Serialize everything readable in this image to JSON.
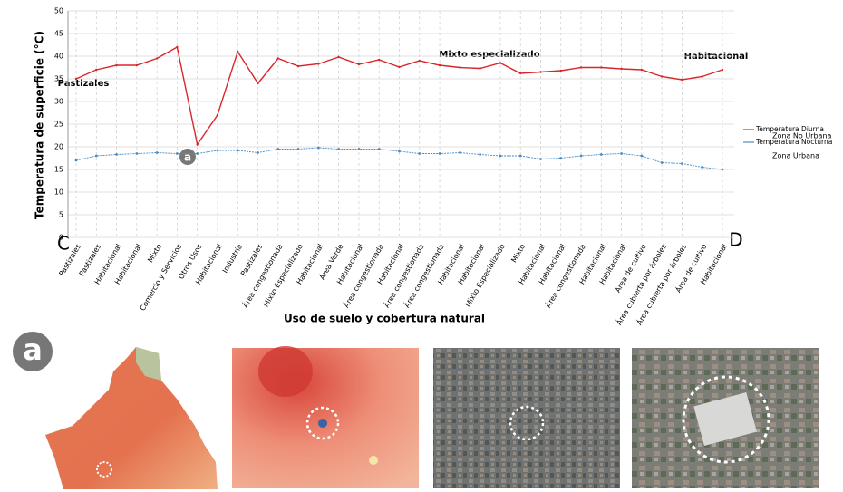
{
  "chart_data": {
    "type": "line",
    "y_label": "Temperatura de superficie (°C)",
    "x_label": "Uso de suelo y cobertura natural",
    "categories": [
      "Pastizales",
      "Pastizales",
      "Habitacional",
      "Habitacional",
      "Mixto",
      "Comercio y Servicios",
      "Otros Usos",
      "Habitacional",
      "Industria",
      "Pastizales",
      "Área congestionada",
      "Mixto Especializado",
      "Habitacional",
      "Área Verde",
      "Habitacional",
      "Área congestionada",
      "Habitacional",
      "Área congestionada",
      "Área congestionada",
      "Habitacional",
      "Habitacional",
      "Mixto Especializado",
      "Mixto",
      "Habitacional",
      "Habitacional",
      "Área congestionada",
      "Habitacional",
      "Habitacional",
      "Área de cultivo",
      "Área cubierta por árboles",
      "Área cubierta por árboles",
      "Área de cultivo",
      "Habitacional"
    ],
    "series": [
      {
        "name": "Temperatura Diurna",
        "color": "#d9262b",
        "values": [
          35,
          37,
          38,
          38,
          39.5,
          42,
          20.5,
          27,
          41,
          34,
          39.5,
          37.8,
          38.3,
          39.8,
          38.2,
          39.2,
          37.6,
          39,
          38,
          37.5,
          37.3,
          38.5,
          36.2,
          36.5,
          36.8,
          37.5,
          37.5,
          37.2,
          37,
          35.5,
          34.8,
          35.5,
          37
        ]
      },
      {
        "name": "Temperatura Nocturna",
        "color": "#4a8cc4",
        "values": [
          17,
          18,
          18.3,
          18.5,
          18.7,
          18.5,
          18.5,
          19.2,
          19.2,
          18.7,
          19.5,
          19.5,
          19.8,
          19.5,
          19.5,
          19.5,
          19,
          18.5,
          18.5,
          18.7,
          18.3,
          18,
          18,
          17.3,
          17.5,
          18,
          18.3,
          18.5,
          18,
          16.5,
          16.3,
          15.5,
          15
        ]
      }
    ],
    "legend_notes": [
      "Zona No Urbana",
      "Zona Urbana"
    ],
    "annotations": [
      "Pastizales",
      "Mixto especializado",
      "Habitacional"
    ],
    "start_label": "C",
    "end_label": "D",
    "marker_label": "a",
    "ylim": [
      0,
      50
    ],
    "yticks": [
      0,
      5,
      10,
      15,
      20,
      25,
      30,
      35,
      40,
      45,
      50
    ],
    "grid": true
  },
  "figure_label": "a"
}
